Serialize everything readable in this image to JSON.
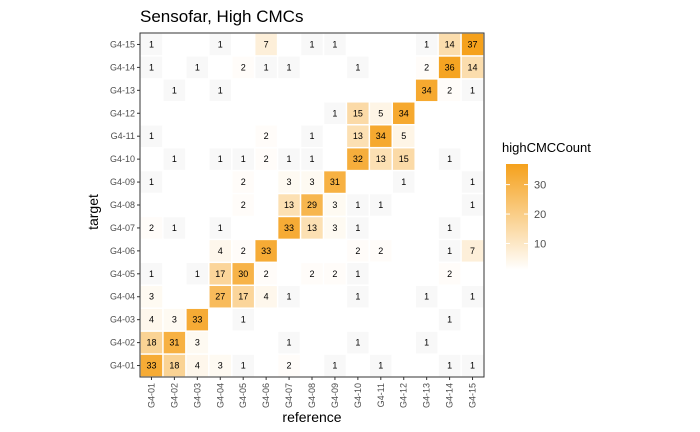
{
  "chart_data": {
    "type": "heatmap",
    "title": "Sensofar, High CMCs",
    "xlabel": "reference",
    "ylabel": "target",
    "x_categories": [
      "G4-01",
      "G4-02",
      "G4-03",
      "G4-04",
      "G4-05",
      "G4-06",
      "G4-07",
      "G4-08",
      "G4-09",
      "G4-10",
      "G4-11",
      "G4-12",
      "G4-13",
      "G4-14",
      "G4-15"
    ],
    "y_categories": [
      "G4-01",
      "G4-02",
      "G4-03",
      "G4-04",
      "G4-05",
      "G4-06",
      "G4-07",
      "G4-08",
      "G4-09",
      "G4-10",
      "G4-11",
      "G4-12",
      "G4-13",
      "G4-14",
      "G4-15"
    ],
    "cells": [
      {
        "x": "G4-01",
        "y": "G4-01",
        "value": 33
      },
      {
        "x": "G4-02",
        "y": "G4-01",
        "value": 18
      },
      {
        "x": "G4-03",
        "y": "G4-01",
        "value": 4
      },
      {
        "x": "G4-04",
        "y": "G4-01",
        "value": 3
      },
      {
        "x": "G4-05",
        "y": "G4-01",
        "value": 1
      },
      {
        "x": "G4-07",
        "y": "G4-01",
        "value": 2
      },
      {
        "x": "G4-09",
        "y": "G4-01",
        "value": 1
      },
      {
        "x": "G4-11",
        "y": "G4-01",
        "value": 1
      },
      {
        "x": "G4-14",
        "y": "G4-01",
        "value": 1
      },
      {
        "x": "G4-15",
        "y": "G4-01",
        "value": 1
      },
      {
        "x": "G4-01",
        "y": "G4-02",
        "value": 18
      },
      {
        "x": "G4-02",
        "y": "G4-02",
        "value": 31
      },
      {
        "x": "G4-03",
        "y": "G4-02",
        "value": 3
      },
      {
        "x": "G4-07",
        "y": "G4-02",
        "value": 1
      },
      {
        "x": "G4-10",
        "y": "G4-02",
        "value": 1
      },
      {
        "x": "G4-13",
        "y": "G4-02",
        "value": 1
      },
      {
        "x": "G4-01",
        "y": "G4-03",
        "value": 4
      },
      {
        "x": "G4-02",
        "y": "G4-03",
        "value": 3
      },
      {
        "x": "G4-03",
        "y": "G4-03",
        "value": 33
      },
      {
        "x": "G4-05",
        "y": "G4-03",
        "value": 1
      },
      {
        "x": "G4-14",
        "y": "G4-03",
        "value": 1
      },
      {
        "x": "G4-01",
        "y": "G4-04",
        "value": 3
      },
      {
        "x": "G4-04",
        "y": "G4-04",
        "value": 27
      },
      {
        "x": "G4-05",
        "y": "G4-04",
        "value": 17
      },
      {
        "x": "G4-06",
        "y": "G4-04",
        "value": 4
      },
      {
        "x": "G4-07",
        "y": "G4-04",
        "value": 1
      },
      {
        "x": "G4-10",
        "y": "G4-04",
        "value": 1
      },
      {
        "x": "G4-13",
        "y": "G4-04",
        "value": 1
      },
      {
        "x": "G4-15",
        "y": "G4-04",
        "value": 1
      },
      {
        "x": "G4-01",
        "y": "G4-05",
        "value": 1
      },
      {
        "x": "G4-03",
        "y": "G4-05",
        "value": 1
      },
      {
        "x": "G4-04",
        "y": "G4-05",
        "value": 17
      },
      {
        "x": "G4-05",
        "y": "G4-05",
        "value": 30
      },
      {
        "x": "G4-06",
        "y": "G4-05",
        "value": 2
      },
      {
        "x": "G4-08",
        "y": "G4-05",
        "value": 2
      },
      {
        "x": "G4-09",
        "y": "G4-05",
        "value": 2
      },
      {
        "x": "G4-10",
        "y": "G4-05",
        "value": 1
      },
      {
        "x": "G4-14",
        "y": "G4-05",
        "value": 2
      },
      {
        "x": "G4-04",
        "y": "G4-06",
        "value": 4
      },
      {
        "x": "G4-05",
        "y": "G4-06",
        "value": 2
      },
      {
        "x": "G4-06",
        "y": "G4-06",
        "value": 33
      },
      {
        "x": "G4-10",
        "y": "G4-06",
        "value": 2
      },
      {
        "x": "G4-11",
        "y": "G4-06",
        "value": 2
      },
      {
        "x": "G4-14",
        "y": "G4-06",
        "value": 1
      },
      {
        "x": "G4-15",
        "y": "G4-06",
        "value": 7
      },
      {
        "x": "G4-01",
        "y": "G4-07",
        "value": 2
      },
      {
        "x": "G4-02",
        "y": "G4-07",
        "value": 1
      },
      {
        "x": "G4-04",
        "y": "G4-07",
        "value": 1
      },
      {
        "x": "G4-07",
        "y": "G4-07",
        "value": 33
      },
      {
        "x": "G4-08",
        "y": "G4-07",
        "value": 13
      },
      {
        "x": "G4-09",
        "y": "G4-07",
        "value": 3
      },
      {
        "x": "G4-10",
        "y": "G4-07",
        "value": 1
      },
      {
        "x": "G4-14",
        "y": "G4-07",
        "value": 1
      },
      {
        "x": "G4-05",
        "y": "G4-08",
        "value": 2
      },
      {
        "x": "G4-07",
        "y": "G4-08",
        "value": 13
      },
      {
        "x": "G4-08",
        "y": "G4-08",
        "value": 29
      },
      {
        "x": "G4-09",
        "y": "G4-08",
        "value": 3
      },
      {
        "x": "G4-10",
        "y": "G4-08",
        "value": 1
      },
      {
        "x": "G4-11",
        "y": "G4-08",
        "value": 1
      },
      {
        "x": "G4-15",
        "y": "G4-08",
        "value": 1
      },
      {
        "x": "G4-01",
        "y": "G4-09",
        "value": 1
      },
      {
        "x": "G4-05",
        "y": "G4-09",
        "value": 2
      },
      {
        "x": "G4-07",
        "y": "G4-09",
        "value": 3
      },
      {
        "x": "G4-08",
        "y": "G4-09",
        "value": 3
      },
      {
        "x": "G4-09",
        "y": "G4-09",
        "value": 31
      },
      {
        "x": "G4-12",
        "y": "G4-09",
        "value": 1
      },
      {
        "x": "G4-15",
        "y": "G4-09",
        "value": 1
      },
      {
        "x": "G4-02",
        "y": "G4-10",
        "value": 1
      },
      {
        "x": "G4-04",
        "y": "G4-10",
        "value": 1
      },
      {
        "x": "G4-05",
        "y": "G4-10",
        "value": 1
      },
      {
        "x": "G4-06",
        "y": "G4-10",
        "value": 2
      },
      {
        "x": "G4-07",
        "y": "G4-10",
        "value": 1
      },
      {
        "x": "G4-08",
        "y": "G4-10",
        "value": 1
      },
      {
        "x": "G4-10",
        "y": "G4-10",
        "value": 32
      },
      {
        "x": "G4-11",
        "y": "G4-10",
        "value": 13
      },
      {
        "x": "G4-12",
        "y": "G4-10",
        "value": 15
      },
      {
        "x": "G4-14",
        "y": "G4-10",
        "value": 1
      },
      {
        "x": "G4-01",
        "y": "G4-11",
        "value": 1
      },
      {
        "x": "G4-06",
        "y": "G4-11",
        "value": 2
      },
      {
        "x": "G4-08",
        "y": "G4-11",
        "value": 1
      },
      {
        "x": "G4-10",
        "y": "G4-11",
        "value": 13
      },
      {
        "x": "G4-11",
        "y": "G4-11",
        "value": 34
      },
      {
        "x": "G4-12",
        "y": "G4-11",
        "value": 5
      },
      {
        "x": "G4-09",
        "y": "G4-12",
        "value": 1
      },
      {
        "x": "G4-10",
        "y": "G4-12",
        "value": 15
      },
      {
        "x": "G4-11",
        "y": "G4-12",
        "value": 5
      },
      {
        "x": "G4-12",
        "y": "G4-12",
        "value": 34
      },
      {
        "x": "G4-02",
        "y": "G4-13",
        "value": 1
      },
      {
        "x": "G4-04",
        "y": "G4-13",
        "value": 1
      },
      {
        "x": "G4-13",
        "y": "G4-13",
        "value": 34
      },
      {
        "x": "G4-14",
        "y": "G4-13",
        "value": 2
      },
      {
        "x": "G4-15",
        "y": "G4-13",
        "value": 1
      },
      {
        "x": "G4-01",
        "y": "G4-14",
        "value": 1
      },
      {
        "x": "G4-03",
        "y": "G4-14",
        "value": 1
      },
      {
        "x": "G4-05",
        "y": "G4-14",
        "value": 2
      },
      {
        "x": "G4-06",
        "y": "G4-14",
        "value": 1
      },
      {
        "x": "G4-07",
        "y": "G4-14",
        "value": 1
      },
      {
        "x": "G4-10",
        "y": "G4-14",
        "value": 1
      },
      {
        "x": "G4-13",
        "y": "G4-14",
        "value": 2
      },
      {
        "x": "G4-14",
        "y": "G4-14",
        "value": 36
      },
      {
        "x": "G4-15",
        "y": "G4-14",
        "value": 14
      },
      {
        "x": "G4-01",
        "y": "G4-15",
        "value": 1
      },
      {
        "x": "G4-04",
        "y": "G4-15",
        "value": 1
      },
      {
        "x": "G4-06",
        "y": "G4-15",
        "value": 7
      },
      {
        "x": "G4-08",
        "y": "G4-15",
        "value": 1
      },
      {
        "x": "G4-09",
        "y": "G4-15",
        "value": 1
      },
      {
        "x": "G4-13",
        "y": "G4-15",
        "value": 1
      },
      {
        "x": "G4-14",
        "y": "G4-15",
        "value": 14
      },
      {
        "x": "G4-15",
        "y": "G4-15",
        "value": 37
      }
    ],
    "legend": {
      "title": "highCMCCount",
      "ticks": [
        10,
        20,
        30
      ],
      "min": 1,
      "max": 37,
      "low_color": "#ffffff",
      "high_color": "#f5a11c",
      "placement": "right"
    },
    "grid": false
  }
}
